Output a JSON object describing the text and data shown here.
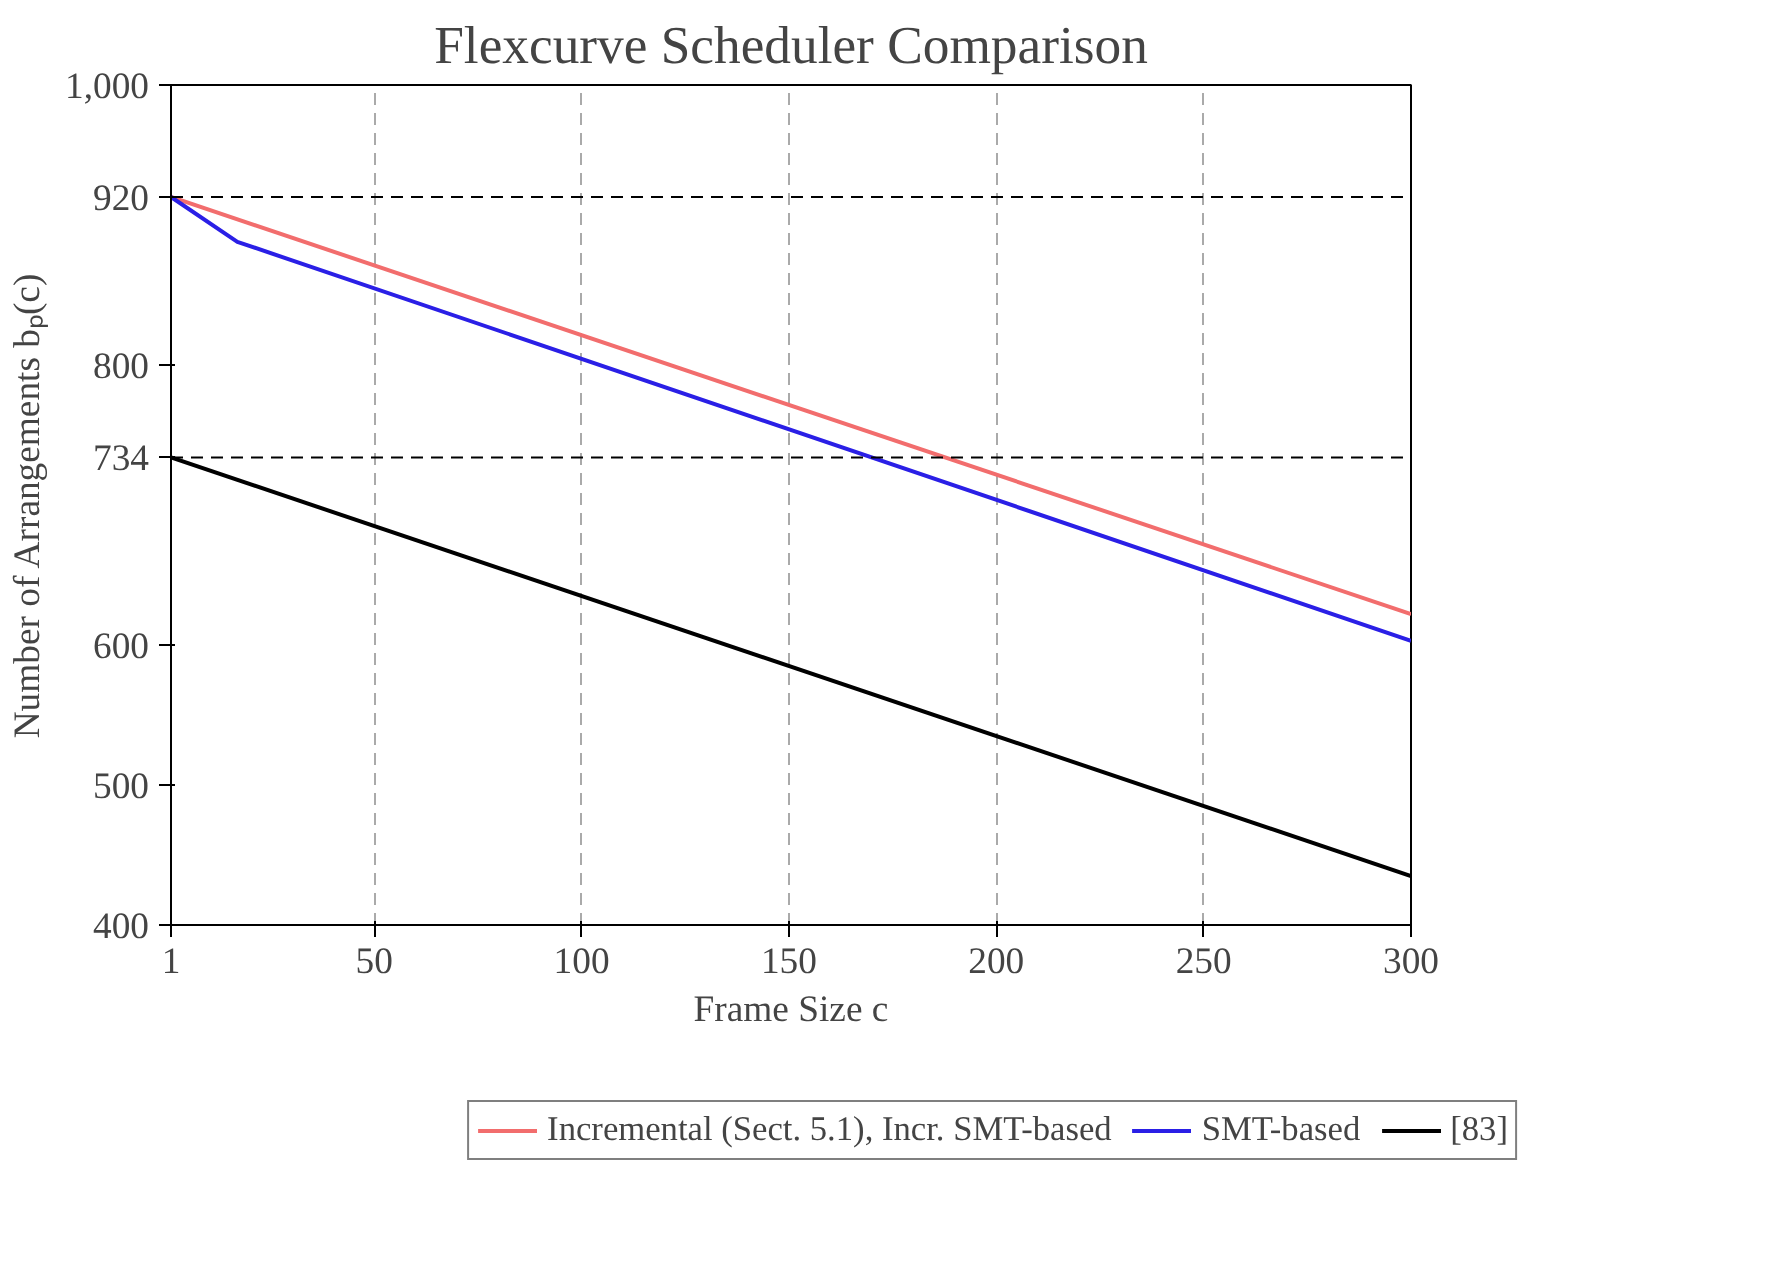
{
  "chart_data": {
    "type": "line",
    "title": "Flexcurve Scheduler Comparison",
    "xlabel": "Frame Size c",
    "ylabel": "Number of Arrangements bₚ(c)",
    "xlim": [
      1,
      300
    ],
    "ylim": [
      400,
      1000
    ],
    "xticks": [
      1,
      50,
      100,
      150,
      200,
      250,
      300
    ],
    "yticks": [
      400,
      500,
      600,
      734,
      800,
      920,
      {
        "value": 1000,
        "label": "1,000"
      }
    ],
    "grid": "x",
    "legend": "bottom",
    "marker": "none",
    "line_style": "solid",
    "ref_lines": [
      {
        "axis": "y",
        "value": 920,
        "label": null,
        "color": "#000000",
        "line_style": "dashed"
      },
      {
        "axis": "y",
        "value": 734,
        "label": null,
        "color": "#000000",
        "line_style": "dashed"
      }
    ],
    "series": [
      {
        "name": "Incremental (Sect. 5.1), Incr. SMT-based",
        "color": "#f26d6d",
        "x": [
          1,
          300
        ],
        "values": [
          920,
          622
        ]
      },
      {
        "name": "SMT-based",
        "color": "#2a1fe6",
        "x": [
          1,
          17,
          300
        ],
        "values": [
          920,
          888,
          603
        ]
      },
      {
        "name": "[83]",
        "color": "#000000",
        "x": [
          1,
          300
        ],
        "values": [
          734,
          435
        ]
      }
    ]
  }
}
